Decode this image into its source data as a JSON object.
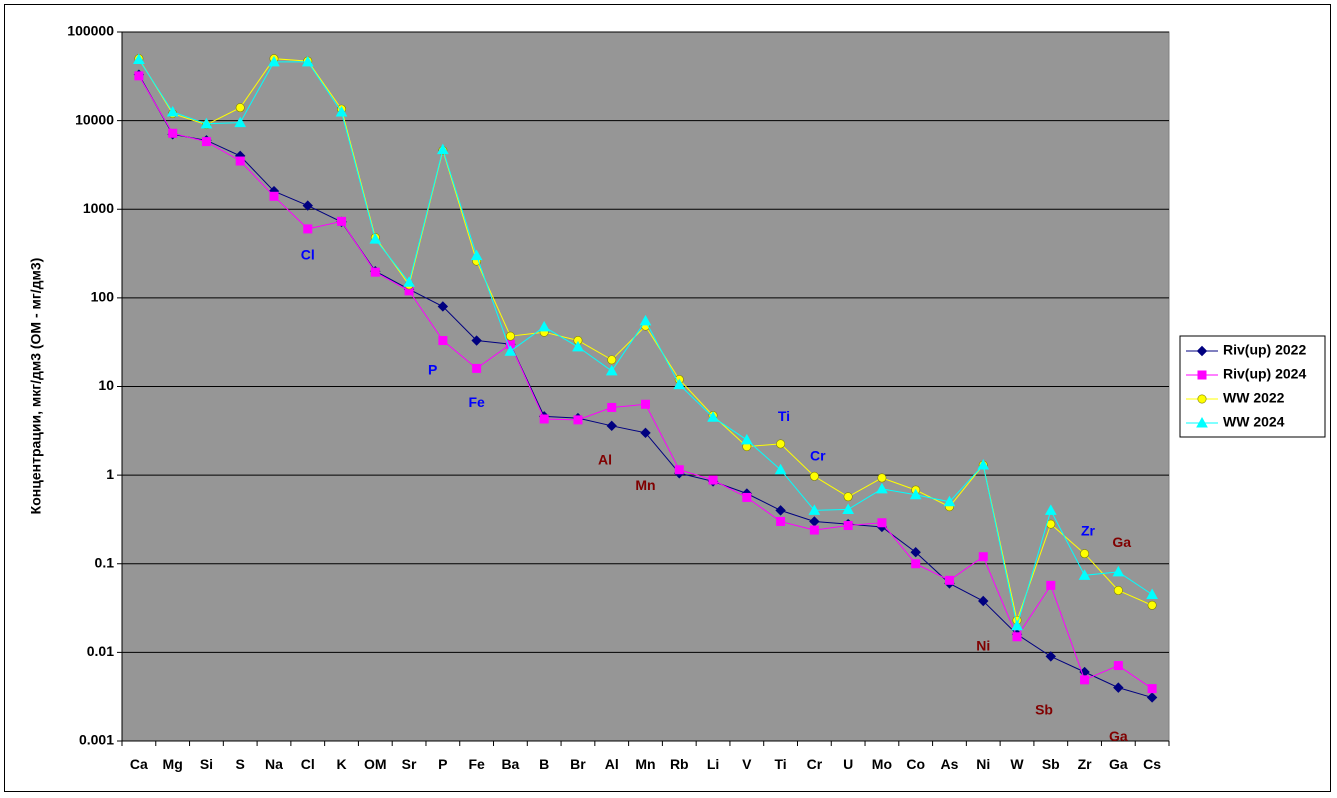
{
  "chart_data": {
    "type": "line",
    "title": "",
    "xlabel": "",
    "ylabel": "Концентрации, мкг/дм3 (ОМ - мг/дм3)",
    "y_scale": "log",
    "ylim": [
      0.001,
      100000
    ],
    "y_ticks": [
      "100000",
      "10000",
      "1000",
      "100",
      "10",
      "1",
      "0.1",
      "0.01",
      "0.001"
    ],
    "grid": "horizontal",
    "plot_background": "#969696",
    "legend_position": "right",
    "categories": [
      "Ca",
      "Mg",
      "Si",
      "S",
      "Na",
      "Cl",
      "K",
      "OM",
      "Sr",
      "P",
      "Fe",
      "Ba",
      "B",
      "Br",
      "Al",
      "Mn",
      "Rb",
      "Li",
      "V",
      "Ti",
      "Cr",
      "U",
      "Mo",
      "Co",
      "As",
      "Ni",
      "W",
      "Sb",
      "Zr",
      "Ga",
      "Cs"
    ],
    "series": [
      {
        "name": "Riv(up) 2022",
        "color": "#000080",
        "marker": "diamond",
        "values": [
          33000,
          7000,
          6000,
          4000,
          1600,
          1100,
          720,
          200,
          125,
          80,
          33,
          30,
          4.6,
          4.4,
          3.6,
          3.0,
          1.05,
          0.85,
          0.62,
          0.4,
          0.3,
          0.28,
          0.26,
          0.135,
          0.06,
          0.038,
          0.016,
          0.009,
          0.006,
          0.004,
          0.0031
        ]
      },
      {
        "name": "Riv(up) 2024",
        "color": "#ff00ff",
        "marker": "square",
        "values": [
          32000,
          7200,
          5800,
          3500,
          1400,
          600,
          730,
          195,
          120,
          33,
          16,
          30,
          4.3,
          4.2,
          5.8,
          6.3,
          1.15,
          0.88,
          0.56,
          0.3,
          0.24,
          0.27,
          0.29,
          0.1,
          0.065,
          0.12,
          0.015,
          0.057,
          0.0049,
          0.0071,
          0.0039
        ]
      },
      {
        "name": "WW 2022",
        "color": "#ffff00",
        "marker": "circle",
        "values": [
          50000,
          12000,
          9000,
          14000,
          50000,
          47000,
          13500,
          480,
          140,
          4600,
          260,
          37,
          41,
          33,
          20,
          48,
          12,
          4.7,
          2.1,
          2.25,
          0.97,
          0.57,
          0.93,
          0.68,
          0.44,
          1.3,
          0.023,
          0.28,
          0.13,
          0.05,
          0.034
        ]
      },
      {
        "name": "WW 2024",
        "color": "#00ffff",
        "marker": "triangle",
        "values": [
          49000,
          12500,
          9200,
          9500,
          46000,
          46000,
          12500,
          460,
          150,
          4700,
          300,
          25,
          47,
          28,
          15,
          55,
          10.5,
          4.5,
          2.5,
          1.15,
          0.4,
          0.41,
          0.7,
          0.6,
          0.5,
          1.3,
          0.02,
          0.4,
          0.074,
          0.081,
          0.045
        ]
      }
    ],
    "annotations": [
      {
        "text": "Cl",
        "category": "Cl",
        "value": 300,
        "color": "#0000ff"
      },
      {
        "text": "P",
        "category": "P",
        "value": 15,
        "color": "#0000ff",
        "offset": -0.3
      },
      {
        "text": "Fe",
        "category": "Fe",
        "value": 6.5,
        "color": "#0000ff"
      },
      {
        "text": "Al",
        "category": "Al",
        "value": 1.45,
        "color": "#800000",
        "offset": -0.2
      },
      {
        "text": "Mn",
        "category": "Mn",
        "value": 0.75,
        "color": "#800000"
      },
      {
        "text": "Ti",
        "category": "Ti",
        "value": 4.5,
        "color": "#0000ff",
        "offset": 0.1
      },
      {
        "text": "Cr",
        "category": "Cr",
        "value": 1.6,
        "color": "#0000ff",
        "offset": 0.1
      },
      {
        "text": "Ni",
        "category": "Ni",
        "value": 0.0115,
        "color": "#800000"
      },
      {
        "text": "Sb",
        "category": "Sb",
        "value": 0.0022,
        "color": "#800000",
        "offset": -0.2
      },
      {
        "text": "Zr",
        "category": "Zr",
        "value": 0.23,
        "color": "#0000ff",
        "offset": 0.1
      },
      {
        "text": "Ga",
        "category": "Ga",
        "value": 0.17,
        "color": "#800000",
        "offset": 0.1
      },
      {
        "text": "Ga",
        "category": "Ga",
        "value": 0.0011,
        "color": "#800000"
      }
    ]
  }
}
